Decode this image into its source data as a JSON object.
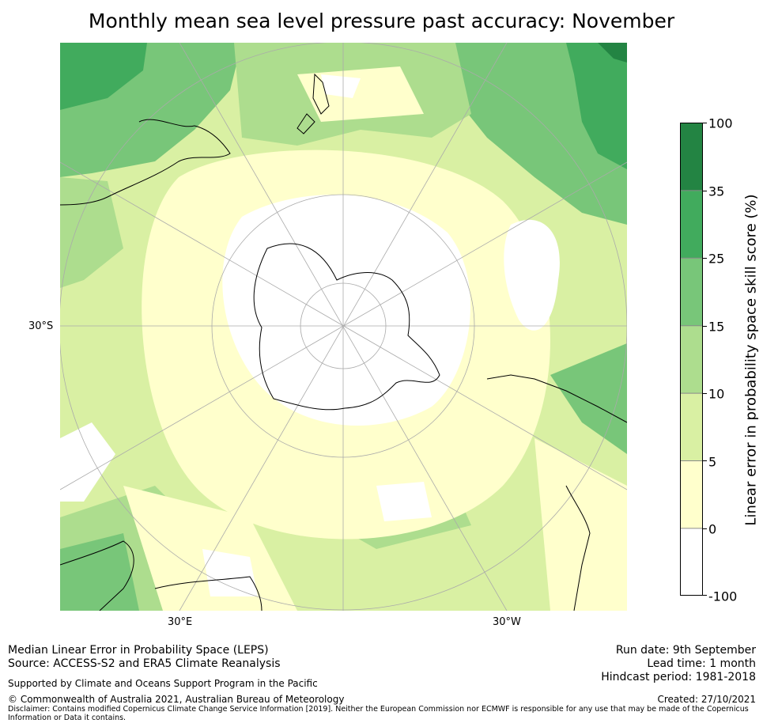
{
  "title": "Monthly mean sea level pressure past accuracy: November",
  "map": {
    "lat_label": "30°S",
    "lon_labels": [
      "30°E",
      "30°W"
    ]
  },
  "colorbar": {
    "title": "Linear error in probability space skill score (%)",
    "ticks": [
      "100",
      "35",
      "25",
      "15",
      "10",
      "5",
      "0",
      "-100"
    ],
    "bins": [
      {
        "range": "35 to 100",
        "color": "#238443"
      },
      {
        "range": "25 to 35",
        "color": "#41ab5d"
      },
      {
        "range": "15 to 25",
        "color": "#78c679"
      },
      {
        "range": "10 to 15",
        "color": "#addd8e"
      },
      {
        "range": "5 to 10",
        "color": "#d9f0a3"
      },
      {
        "range": "0 to 5",
        "color": "#ffffcc"
      },
      {
        "range": "-100 to 0",
        "color": "#ffffff"
      }
    ]
  },
  "footer": {
    "line1": "Median Linear Error in Probability Space (LEPS)",
    "line2": "Source: ACCESS-S2 and ERA5 Climate Reanalysis",
    "support": "Supported by Climate and Oceans Support Program in the Pacific",
    "copyright": "© Commonwealth of Australia 2021, Australian Bureau of Meteorology",
    "disclaimer_1": "Disclaimer: Contains modified Copernicus Climate Change Service Information [2019]. Neither the European Commission nor ECMWF is responsible for any use that may be made of the Copernicus",
    "disclaimer_2": "Information or Data it contains.",
    "run_date": "Run date: 9th September",
    "lead_time": "Lead time: 1 month",
    "hindcast": "Hindcast period: 1981-2018",
    "created": "Created: 27/10/2021"
  }
}
